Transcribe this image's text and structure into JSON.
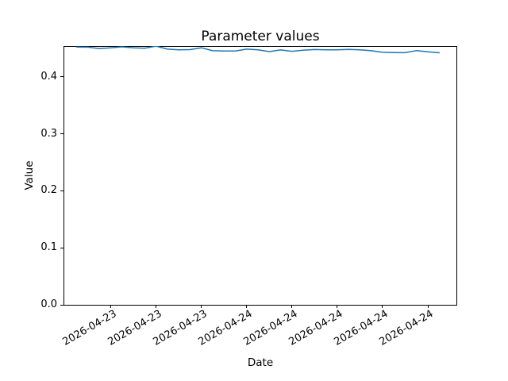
{
  "chart_data": {
    "type": "line",
    "title": "Parameter values",
    "xlabel": "Date",
    "ylabel": "Value",
    "ylim": [
      0,
      0.455
    ],
    "grid": false,
    "legend": "none",
    "line_color": "#1f77b4",
    "y_ticks": [
      "0.0",
      "0.1",
      "0.2",
      "0.3",
      "0.4"
    ],
    "x": [
      "2026-04-23 09:00",
      "2026-04-23 10:00",
      "2026-04-23 11:00",
      "2026-04-23 12:00",
      "2026-04-23 13:00",
      "2026-04-23 14:00",
      "2026-04-23 15:00",
      "2026-04-23 16:00",
      "2026-04-23 17:00",
      "2026-04-23 18:00",
      "2026-04-23 19:00",
      "2026-04-23 20:00",
      "2026-04-23 21:00",
      "2026-04-23 22:00",
      "2026-04-23 23:00",
      "2026-04-24 00:00",
      "2026-04-24 01:00",
      "2026-04-24 02:00",
      "2026-04-24 03:00",
      "2026-04-24 04:00",
      "2026-04-24 05:00",
      "2026-04-24 06:00",
      "2026-04-24 07:00",
      "2026-04-24 08:00",
      "2026-04-24 09:00",
      "2026-04-24 10:00",
      "2026-04-24 11:00",
      "2026-04-24 12:00",
      "2026-04-24 13:00",
      "2026-04-24 14:00",
      "2026-04-24 15:00",
      "2026-04-24 16:00",
      "2026-04-24 17:00"
    ],
    "values": [
      0.4533,
      0.453,
      0.4505,
      0.452,
      0.4536,
      0.452,
      0.4513,
      0.4548,
      0.4495,
      0.4485,
      0.4487,
      0.452,
      0.4468,
      0.4462,
      0.4464,
      0.4495,
      0.4485,
      0.4453,
      0.4482,
      0.4458,
      0.4478,
      0.4488,
      0.4483,
      0.4485,
      0.449,
      0.4483,
      0.4468,
      0.444,
      0.4435,
      0.4433,
      0.447,
      0.4448,
      0.4432
    ],
    "x_ticks": [
      {
        "index": 3,
        "label": "2026-04-23"
      },
      {
        "index": 7,
        "label": "2026-04-23"
      },
      {
        "index": 11,
        "label": "2026-04-23"
      },
      {
        "index": 15,
        "label": "2026-04-24"
      },
      {
        "index": 19,
        "label": "2026-04-24"
      },
      {
        "index": 23,
        "label": "2026-04-24"
      },
      {
        "index": 27,
        "label": "2026-04-24"
      },
      {
        "index": 31,
        "label": "2026-04-24"
      }
    ]
  }
}
